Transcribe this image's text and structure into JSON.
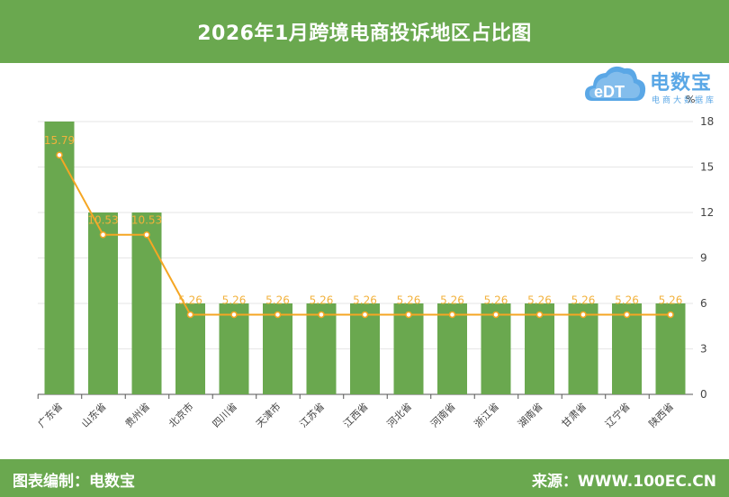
{
  "header": {
    "title": "2026年1月跨境电商投诉地区占比图"
  },
  "footer": {
    "editor": "图表编制：电数宝",
    "source": "来源：WWW.100EC.CN"
  },
  "logo": {
    "icon_text": "eDT",
    "name": "电数宝",
    "subtitle": "电商大数据库"
  },
  "colors": {
    "bar": "#6aa84f",
    "line": "#f5a623",
    "header": "#6aa84f",
    "logo": "#5aa7e6"
  },
  "chart_data": {
    "type": "bar",
    "title": "2026年1月跨境电商投诉地区占比图",
    "categories": [
      "广东省",
      "山东省",
      "贵州省",
      "北京市",
      "四川省",
      "天津市",
      "江苏省",
      "江西省",
      "河北省",
      "河南省",
      "浙江省",
      "湖南省",
      "甘肃省",
      "辽宁省",
      "陕西省"
    ],
    "series": [
      {
        "type": "bar",
        "values": [
          18,
          12,
          12,
          6,
          6,
          6,
          6,
          6,
          6,
          6,
          6,
          6,
          6,
          6,
          6
        ]
      },
      {
        "type": "line",
        "values": [
          15.79,
          10.53,
          10.53,
          5.26,
          5.26,
          5.26,
          5.26,
          5.26,
          5.26,
          5.26,
          5.26,
          5.26,
          5.26,
          5.26,
          5.26
        ]
      }
    ],
    "data_labels": [
      "15.79",
      "10.53",
      "10.53",
      "5.26",
      "5.26",
      "5.26",
      "5.26",
      "5.26",
      "5.26",
      "5.26",
      "5.26",
      "5.26",
      "5.26",
      "5.26",
      "5.26"
    ],
    "y_unit": "%",
    "y_ticks": [
      0,
      3,
      6,
      9,
      12,
      15,
      18
    ],
    "ylim": [
      0,
      18
    ],
    "y_axis_side": "right",
    "grid": true
  }
}
